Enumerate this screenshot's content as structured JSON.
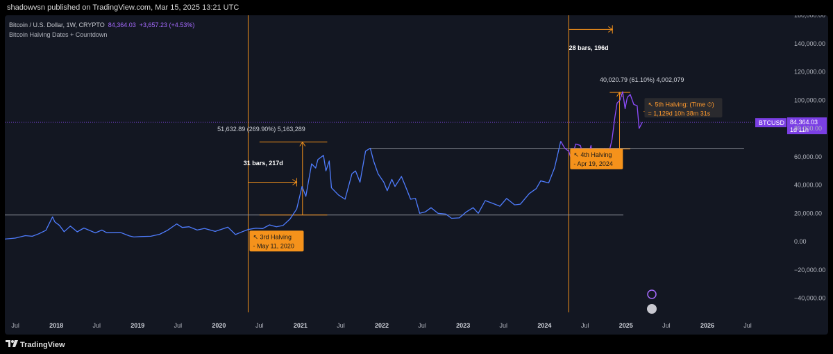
{
  "header": {
    "text": "shadowvsn published on TradingView.com, Mar 15, 2025 13:21 UTC"
  },
  "legend": {
    "symbol": "Bitcoin / U.S. Dollar, 1W, CRYPTO",
    "last": "84,364.03",
    "change": "+3,657.23 (+4.53%)",
    "indicator": "Bitcoin Halving Dates + Countdown"
  },
  "colors": {
    "background": "#131722",
    "line_blue": "#4f7dff",
    "line_purple": "#8f4dff",
    "orange": "#f5921b",
    "grey_line": "#8a8d96",
    "price_tag": "#7b3fe4"
  },
  "price_tag": {
    "symbol": "BTCUSD",
    "price": "84,364.03",
    "countdown": "1d 11h"
  },
  "annotations": {
    "measure_2020": "51,632.89 (269.90%) 5,163,289",
    "bars_2020": "31 bars, 217d",
    "measure_2024": "40,020.79 (61.10%) 4,002,079",
    "bars_2024": "28 bars, 196d",
    "halving3_line1": "↖ 3rd Halving",
    "halving3_line2": "- May 11, 2020",
    "halving4_line1": "↖ 4th Halving",
    "halving4_line2": "- Apr 19, 2024",
    "halving5_line1": "↖ 5th Halving: (Time ⏱)",
    "halving5_line2": "= 1,129d 10h 38m 31s"
  },
  "footer": {
    "brand": "TradingView"
  },
  "chart_data": {
    "type": "line",
    "title": "Bitcoin / U.S. Dollar, 1W, CRYPTO",
    "ylim": [
      -50000,
      160000
    ],
    "yticks": [
      -40000,
      -20000,
      0,
      20000,
      40000,
      60000,
      80000,
      100000,
      120000,
      140000,
      160000
    ],
    "ytick_labels": [
      "−40,000.00",
      "−20,000.00",
      "0.00",
      "20,000.00",
      "40,000.00",
      "60,000.00",
      "80,000.00",
      "100,000.00",
      "120,000.00",
      "140,000.00",
      "160,000.00"
    ],
    "xlim": [
      "2017-05-15",
      "2026-08-01"
    ],
    "xticks": [
      {
        "date": "2017-07-01",
        "label": "Jul",
        "major": false
      },
      {
        "date": "2018-01-01",
        "label": "2018",
        "major": true
      },
      {
        "date": "2018-07-01",
        "label": "Jul",
        "major": false
      },
      {
        "date": "2019-01-01",
        "label": "2019",
        "major": true
      },
      {
        "date": "2019-07-01",
        "label": "Jul",
        "major": false
      },
      {
        "date": "2020-01-01",
        "label": "2020",
        "major": true
      },
      {
        "date": "2020-07-01",
        "label": "Jul",
        "major": false
      },
      {
        "date": "2021-01-01",
        "label": "2021",
        "major": true
      },
      {
        "date": "2021-07-01",
        "label": "Jul",
        "major": false
      },
      {
        "date": "2022-01-01",
        "label": "2022",
        "major": true
      },
      {
        "date": "2022-07-01",
        "label": "Jul",
        "major": false
      },
      {
        "date": "2023-01-01",
        "label": "2023",
        "major": true
      },
      {
        "date": "2023-07-01",
        "label": "Jul",
        "major": false
      },
      {
        "date": "2024-01-01",
        "label": "2024",
        "major": true
      },
      {
        "date": "2024-07-01",
        "label": "Jul",
        "major": false
      },
      {
        "date": "2025-01-01",
        "label": "2025",
        "major": true
      },
      {
        "date": "2025-07-01",
        "label": "Jul",
        "major": false
      },
      {
        "date": "2026-01-01",
        "label": "2026",
        "major": true
      },
      {
        "date": "2026-07-01",
        "label": "Jul",
        "major": false
      }
    ],
    "series": [
      {
        "color": "#4f7dff",
        "points": [
          [
            "2017-05-15",
            1800
          ],
          [
            "2017-07-01",
            2500
          ],
          [
            "2017-08-15",
            4200
          ],
          [
            "2017-09-15",
            3800
          ],
          [
            "2017-10-15",
            5600
          ],
          [
            "2017-11-15",
            8000
          ],
          [
            "2017-12-15",
            17500
          ],
          [
            "2017-12-25",
            14000
          ],
          [
            "2018-01-15",
            11500
          ],
          [
            "2018-02-05",
            7000
          ],
          [
            "2018-03-05",
            11000
          ],
          [
            "2018-04-05",
            6900
          ],
          [
            "2018-05-05",
            9600
          ],
          [
            "2018-06-25",
            6200
          ],
          [
            "2018-07-25",
            8200
          ],
          [
            "2018-08-15",
            6300
          ],
          [
            "2018-10-15",
            6500
          ],
          [
            "2018-11-25",
            4000
          ],
          [
            "2018-12-15",
            3300
          ],
          [
            "2019-01-15",
            3600
          ],
          [
            "2019-03-01",
            3800
          ],
          [
            "2019-04-10",
            5200
          ],
          [
            "2019-05-15",
            8000
          ],
          [
            "2019-06-25",
            12500
          ],
          [
            "2019-07-20",
            10000
          ],
          [
            "2019-08-20",
            10500
          ],
          [
            "2019-09-25",
            8200
          ],
          [
            "2019-10-28",
            9300
          ],
          [
            "2019-12-15",
            7200
          ],
          [
            "2020-02-10",
            10200
          ],
          [
            "2020-03-15",
            5000
          ],
          [
            "2020-04-15",
            7000
          ],
          [
            "2020-05-11",
            8600
          ],
          [
            "2020-06-15",
            9500
          ],
          [
            "2020-07-15",
            9200
          ],
          [
            "2020-08-15",
            11800
          ],
          [
            "2020-09-15",
            10500
          ],
          [
            "2020-10-15",
            11500
          ],
          [
            "2020-11-15",
            16000
          ],
          [
            "2020-12-15",
            23000
          ],
          [
            "2021-01-08",
            39000
          ],
          [
            "2021-01-25",
            32000
          ],
          [
            "2021-02-20",
            55000
          ],
          [
            "2021-03-10",
            52000
          ],
          [
            "2021-03-20",
            58000
          ],
          [
            "2021-04-14",
            61000
          ],
          [
            "2021-04-25",
            50000
          ],
          [
            "2021-05-10",
            57000
          ],
          [
            "2021-05-20",
            38000
          ],
          [
            "2021-06-20",
            33000
          ],
          [
            "2021-07-20",
            30000
          ],
          [
            "2021-08-20",
            48000
          ],
          [
            "2021-09-05",
            50000
          ],
          [
            "2021-09-25",
            42000
          ],
          [
            "2021-10-20",
            64000
          ],
          [
            "2021-11-10",
            66000
          ],
          [
            "2021-11-25",
            57000
          ],
          [
            "2021-12-15",
            48000
          ],
          [
            "2022-01-10",
            42000
          ],
          [
            "2022-01-25",
            36000
          ],
          [
            "2022-02-15",
            44000
          ],
          [
            "2022-03-01",
            39000
          ],
          [
            "2022-03-30",
            46000
          ],
          [
            "2022-04-15",
            40000
          ],
          [
            "2022-05-10",
            30000
          ],
          [
            "2022-06-01",
            30500
          ],
          [
            "2022-06-20",
            20000
          ],
          [
            "2022-07-15",
            21000
          ],
          [
            "2022-08-10",
            24000
          ],
          [
            "2022-09-10",
            20000
          ],
          [
            "2022-10-15",
            19500
          ],
          [
            "2022-11-10",
            16500
          ],
          [
            "2022-12-15",
            16800
          ],
          [
            "2023-01-15",
            21000
          ],
          [
            "2023-02-15",
            24000
          ],
          [
            "2023-03-10",
            20000
          ],
          [
            "2023-04-10",
            29000
          ],
          [
            "2023-05-15",
            27000
          ],
          [
            "2023-06-15",
            25000
          ],
          [
            "2023-07-15",
            30500
          ],
          [
            "2023-08-20",
            26000
          ],
          [
            "2023-09-15",
            26500
          ],
          [
            "2023-10-25",
            34000
          ],
          [
            "2023-11-25",
            37500
          ],
          [
            "2023-12-15",
            43000
          ],
          [
            "2024-01-20",
            41500
          ],
          [
            "2024-02-15",
            52000
          ],
          [
            "2024-03-14",
            71000
          ]
        ]
      },
      {
        "color": "#8f4dff",
        "points": [
          [
            "2024-03-14",
            71000
          ],
          [
            "2024-04-01",
            66000
          ],
          [
            "2024-04-19",
            64000
          ],
          [
            "2024-05-01",
            58000
          ],
          [
            "2024-05-20",
            69000
          ],
          [
            "2024-06-10",
            68000
          ],
          [
            "2024-07-05",
            55000
          ],
          [
            "2024-07-28",
            68000
          ],
          [
            "2024-08-05",
            54000
          ],
          [
            "2024-08-25",
            64000
          ],
          [
            "2024-09-07",
            54000
          ],
          [
            "2024-09-28",
            66000
          ],
          [
            "2024-10-15",
            62000
          ],
          [
            "2024-10-30",
            72000
          ],
          [
            "2024-11-12",
            88000
          ],
          [
            "2024-11-22",
            98000
          ],
          [
            "2024-12-05",
            100000
          ],
          [
            "2024-12-17",
            106000
          ],
          [
            "2024-12-28",
            94000
          ],
          [
            "2025-01-07",
            102000
          ],
          [
            "2025-01-20",
            104000
          ],
          [
            "2025-02-05",
            97000
          ],
          [
            "2025-02-20",
            96000
          ],
          [
            "2025-03-01",
            80000
          ],
          [
            "2025-03-15",
            84364
          ]
        ]
      }
    ]
  }
}
